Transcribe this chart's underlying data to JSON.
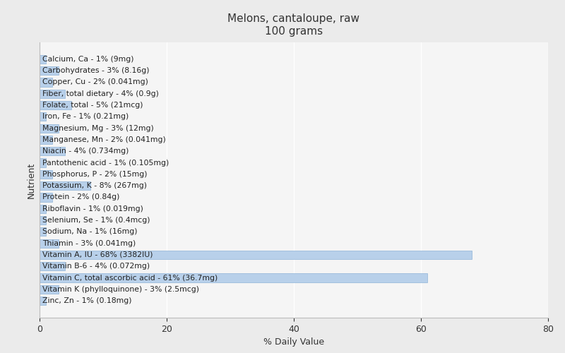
{
  "title": "Melons, cantaloupe, raw\n100 grams",
  "xlabel": "% Daily Value",
  "ylabel": "Nutrient",
  "xlim": [
    0,
    80
  ],
  "xticks": [
    0,
    20,
    40,
    60,
    80
  ],
  "background_color": "#ebebeb",
  "plot_background": "#f5f5f5",
  "bar_color": "#b8d0ea",
  "bar_edge_color": "#8fb4d8",
  "nutrients": [
    {
      "label": "Calcium, Ca - 1% (9mg)",
      "value": 1
    },
    {
      "label": "Carbohydrates - 3% (8.16g)",
      "value": 3
    },
    {
      "label": "Copper, Cu - 2% (0.041mg)",
      "value": 2
    },
    {
      "label": "Fiber, total dietary - 4% (0.9g)",
      "value": 4
    },
    {
      "label": "Folate, total - 5% (21mcg)",
      "value": 5
    },
    {
      "label": "Iron, Fe - 1% (0.21mg)",
      "value": 1
    },
    {
      "label": "Magnesium, Mg - 3% (12mg)",
      "value": 3
    },
    {
      "label": "Manganese, Mn - 2% (0.041mg)",
      "value": 2
    },
    {
      "label": "Niacin - 4% (0.734mg)",
      "value": 4
    },
    {
      "label": "Pantothenic acid - 1% (0.105mg)",
      "value": 1
    },
    {
      "label": "Phosphorus, P - 2% (15mg)",
      "value": 2
    },
    {
      "label": "Potassium, K - 8% (267mg)",
      "value": 8
    },
    {
      "label": "Protein - 2% (0.84g)",
      "value": 2
    },
    {
      "label": "Riboflavin - 1% (0.019mg)",
      "value": 1
    },
    {
      "label": "Selenium, Se - 1% (0.4mcg)",
      "value": 1
    },
    {
      "label": "Sodium, Na - 1% (16mg)",
      "value": 1
    },
    {
      "label": "Thiamin - 3% (0.041mg)",
      "value": 3
    },
    {
      "label": "Vitamin A, IU - 68% (3382IU)",
      "value": 68
    },
    {
      "label": "Vitamin B-6 - 4% (0.072mg)",
      "value": 4
    },
    {
      "label": "Vitamin C, total ascorbic acid - 61% (36.7mg)",
      "value": 61
    },
    {
      "label": "Vitamin K (phylloquinone) - 3% (2.5mcg)",
      "value": 3
    },
    {
      "label": "Zinc, Zn - 1% (0.18mg)",
      "value": 1
    }
  ],
  "text_color": "#333333",
  "label_inside_color": "#222222",
  "title_fontsize": 11,
  "label_fontsize": 7.8,
  "axis_label_fontsize": 9
}
